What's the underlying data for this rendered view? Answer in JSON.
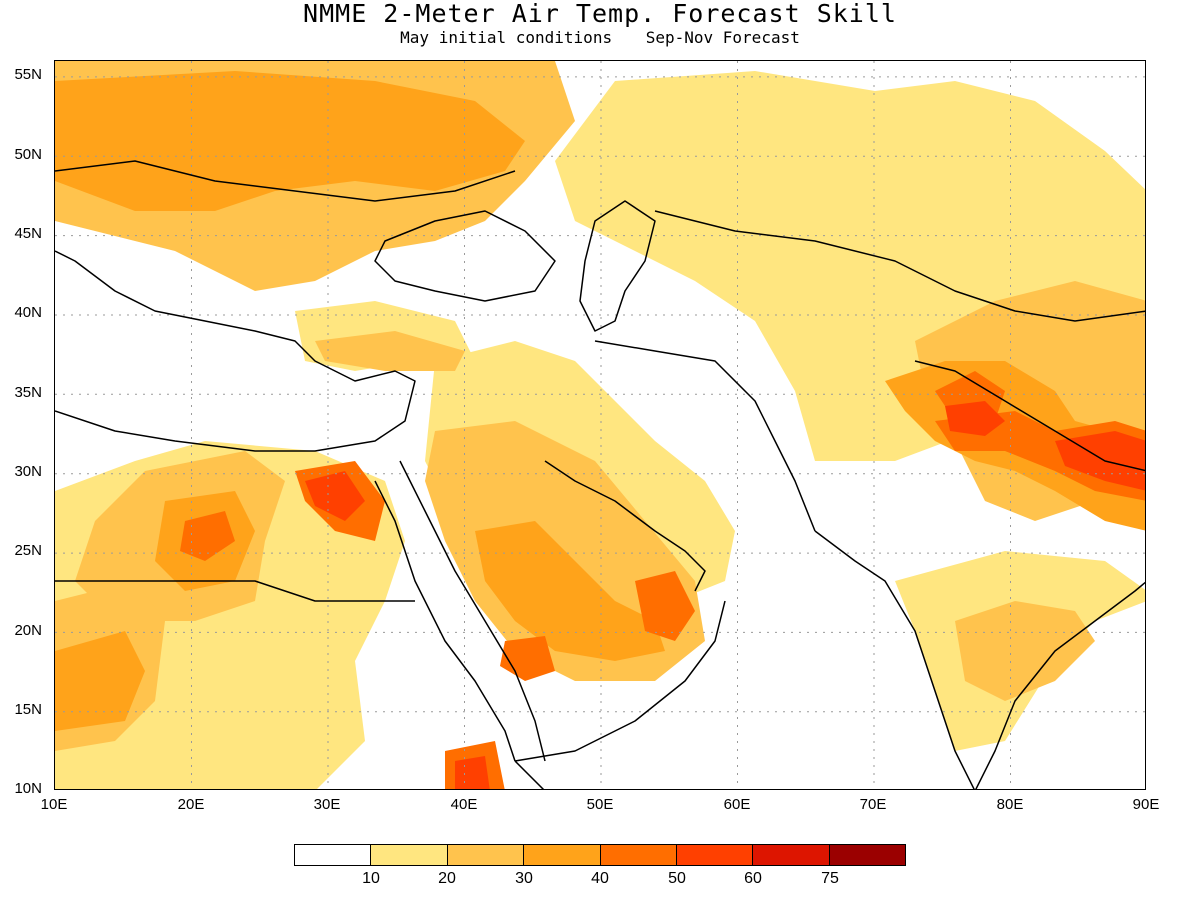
{
  "header": {
    "title": "NMME 2-Meter Air Temp. Forecast Skill",
    "subtitle_left": "May initial conditions",
    "subtitle_right": "Sep-Nov Forecast"
  },
  "map": {
    "lon_range": [
      10,
      90
    ],
    "lat_range": [
      10,
      56
    ],
    "lat_labels": [
      "55N",
      "50N",
      "45N",
      "40N",
      "35N",
      "30N",
      "25N",
      "20N",
      "15N",
      "10N"
    ],
    "lon_labels": [
      "10E",
      "20E",
      "30E",
      "40E",
      "50E",
      "60E",
      "70E",
      "80E",
      "90E"
    ],
    "gridlines": "dotted"
  },
  "legend": {
    "colors": [
      "#ffffff",
      "#ffe680",
      "#ffc34d",
      "#ffa31a",
      "#ff6e00",
      "#ff4000",
      "#dd1500",
      "#9b0000"
    ],
    "labels": [
      "10",
      "20",
      "30",
      "40",
      "50",
      "60",
      "75"
    ]
  }
}
